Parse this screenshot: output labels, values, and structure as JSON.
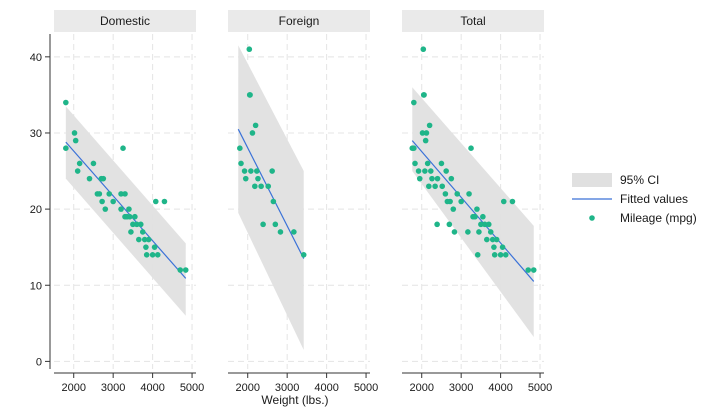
{
  "chart_data": {
    "type": "scatter",
    "xlabel": "Weight (lbs.)",
    "ylabel": "",
    "xlim": [
      1500,
      5100
    ],
    "ylim": [
      -1,
      43
    ],
    "xticks": [
      2000,
      3000,
      4000,
      5000
    ],
    "yticks": [
      0,
      10,
      20,
      30,
      40
    ],
    "grid": true,
    "legend_position": "right",
    "colors": {
      "ci": "#e0e0e0",
      "fit": "#3b72d8",
      "points": "#1fb589",
      "strip": "#eaeaea",
      "axis": "#333333"
    },
    "legend": [
      {
        "label": "95% CI",
        "kind": "band"
      },
      {
        "label": "Fitted values",
        "kind": "line"
      },
      {
        "label": "Mileage (mpg)",
        "kind": "marker"
      }
    ],
    "panels": [
      {
        "title": "Domestic",
        "ci": {
          "x": [
            1800,
            4840
          ],
          "lower": [
            24,
            6
          ],
          "upper": [
            33.5,
            15.5
          ]
        },
        "fit": {
          "x": [
            1800,
            4840
          ],
          "y": [
            28.8,
            10.9
          ]
        },
        "points": [
          [
            1800,
            34
          ],
          [
            1800,
            28
          ],
          [
            2020,
            30
          ],
          [
            2050,
            29
          ],
          [
            2100,
            25
          ],
          [
            2150,
            26
          ],
          [
            2400,
            24
          ],
          [
            2500,
            26
          ],
          [
            2600,
            22
          ],
          [
            2650,
            22
          ],
          [
            2700,
            24
          ],
          [
            2720,
            21
          ],
          [
            2750,
            24
          ],
          [
            2800,
            20
          ],
          [
            2900,
            22
          ],
          [
            3000,
            21
          ],
          [
            3200,
            20
          ],
          [
            3200,
            22
          ],
          [
            3250,
            28
          ],
          [
            3300,
            22
          ],
          [
            3300,
            19
          ],
          [
            3350,
            19
          ],
          [
            3400,
            20
          ],
          [
            3420,
            19
          ],
          [
            3450,
            17
          ],
          [
            3500,
            18
          ],
          [
            3550,
            19
          ],
          [
            3600,
            18
          ],
          [
            3650,
            16
          ],
          [
            3700,
            18
          ],
          [
            3750,
            17
          ],
          [
            3800,
            16
          ],
          [
            3830,
            15
          ],
          [
            3850,
            14
          ],
          [
            3900,
            16
          ],
          [
            4000,
            14
          ],
          [
            4050,
            15
          ],
          [
            4080,
            21
          ],
          [
            4130,
            14
          ],
          [
            4300,
            21
          ],
          [
            4700,
            12
          ],
          [
            4840,
            12
          ]
        ]
      },
      {
        "title": "Foreign",
        "ci": {
          "x": [
            1760,
            3420
          ],
          "lower": [
            19.5,
            1.5
          ],
          "upper": [
            41.5,
            25
          ]
        },
        "fit": {
          "x": [
            1760,
            3420
          ],
          "y": [
            30.5,
            13.5
          ]
        },
        "points": [
          [
            1800,
            28
          ],
          [
            1830,
            26
          ],
          [
            1920,
            25
          ],
          [
            1950,
            24
          ],
          [
            2040,
            41
          ],
          [
            2050,
            35
          ],
          [
            2060,
            35
          ],
          [
            2080,
            25
          ],
          [
            2120,
            30
          ],
          [
            2180,
            23
          ],
          [
            2200,
            31
          ],
          [
            2230,
            25
          ],
          [
            2260,
            24
          ],
          [
            2340,
            23
          ],
          [
            2390,
            18
          ],
          [
            2520,
            23
          ],
          [
            2620,
            25
          ],
          [
            2650,
            21
          ],
          [
            2700,
            18
          ],
          [
            2830,
            17
          ],
          [
            3170,
            17
          ],
          [
            3420,
            14
          ]
        ]
      },
      {
        "title": "Total",
        "ci": {
          "x": [
            1760,
            4840
          ],
          "lower": [
            25,
            3.2
          ],
          "upper": [
            36,
            17.8
          ]
        },
        "fit": {
          "x": [
            1760,
            4840
          ],
          "y": [
            29,
            10.5
          ]
        },
        "points": [
          [
            1760,
            28
          ],
          [
            1800,
            34
          ],
          [
            1800,
            28
          ],
          [
            1830,
            26
          ],
          [
            1920,
            25
          ],
          [
            1950,
            24
          ],
          [
            2020,
            30
          ],
          [
            2040,
            41
          ],
          [
            2050,
            35
          ],
          [
            2060,
            35
          ],
          [
            2080,
            25
          ],
          [
            2100,
            29
          ],
          [
            2120,
            30
          ],
          [
            2150,
            26
          ],
          [
            2180,
            23
          ],
          [
            2200,
            31
          ],
          [
            2230,
            25
          ],
          [
            2260,
            24
          ],
          [
            2340,
            23
          ],
          [
            2390,
            18
          ],
          [
            2400,
            24
          ],
          [
            2500,
            26
          ],
          [
            2520,
            23
          ],
          [
            2600,
            22
          ],
          [
            2620,
            25
          ],
          [
            2650,
            21
          ],
          [
            2700,
            18
          ],
          [
            2720,
            21
          ],
          [
            2750,
            24
          ],
          [
            2800,
            20
          ],
          [
            2830,
            17
          ],
          [
            2900,
            22
          ],
          [
            3000,
            21
          ],
          [
            3170,
            17
          ],
          [
            3200,
            22
          ],
          [
            3250,
            28
          ],
          [
            3300,
            19
          ],
          [
            3350,
            19
          ],
          [
            3400,
            20
          ],
          [
            3420,
            14
          ],
          [
            3450,
            17
          ],
          [
            3500,
            18
          ],
          [
            3550,
            19
          ],
          [
            3600,
            18
          ],
          [
            3650,
            16
          ],
          [
            3700,
            18
          ],
          [
            3750,
            17
          ],
          [
            3800,
            16
          ],
          [
            3830,
            15
          ],
          [
            3850,
            14
          ],
          [
            3900,
            16
          ],
          [
            4000,
            14
          ],
          [
            4050,
            15
          ],
          [
            4080,
            21
          ],
          [
            4130,
            14
          ],
          [
            4300,
            21
          ],
          [
            4700,
            12
          ],
          [
            4840,
            12
          ]
        ]
      }
    ]
  }
}
